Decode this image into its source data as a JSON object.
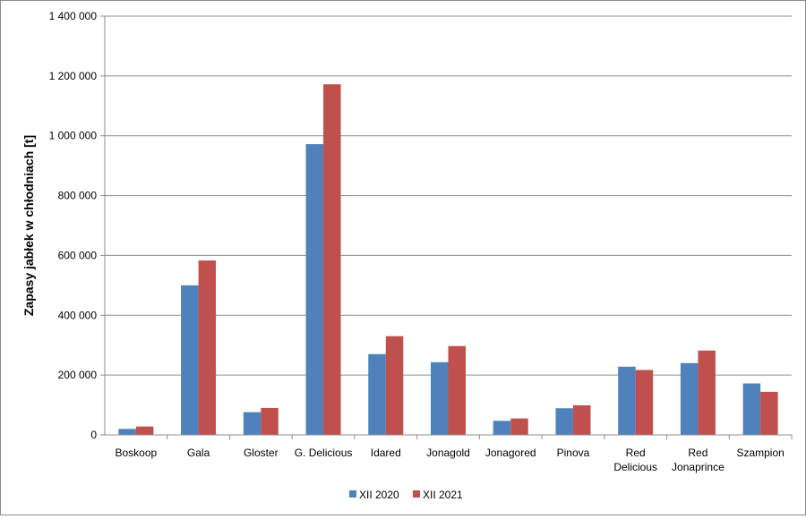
{
  "chart_data": {
    "type": "bar",
    "title": "",
    "xlabel": "",
    "ylabel": "Zapasy jabłek w chłodniach [t]",
    "ylim": [
      0,
      1400000
    ],
    "yticks": [
      0,
      200000,
      400000,
      600000,
      800000,
      1000000,
      1200000,
      1400000
    ],
    "ytick_labels": [
      "0",
      "200 000",
      "400 000",
      "600 000",
      "800 000",
      "1 000 000",
      "1 200 000",
      "1 400 000"
    ],
    "categories": [
      [
        "Boskoop"
      ],
      [
        "Gala"
      ],
      [
        "Gloster"
      ],
      [
        "G. Delicious"
      ],
      [
        "Idared"
      ],
      [
        "Jonagold"
      ],
      [
        "Jonagored"
      ],
      [
        "Pinova"
      ],
      [
        "Red",
        "Delicious"
      ],
      [
        "Red",
        "Jonaprince"
      ],
      [
        "Szampion"
      ]
    ],
    "series": [
      {
        "name": "XII 2020",
        "color": "#4f81bd",
        "values": [
          20000,
          500000,
          76000,
          972000,
          270000,
          243000,
          47000,
          89000,
          228000,
          240000,
          172000
        ]
      },
      {
        "name": "XII 2021",
        "color": "#c0504d",
        "values": [
          28000,
          583000,
          90000,
          1172000,
          330000,
          297000,
          55000,
          99000,
          217000,
          282000,
          144000
        ]
      }
    ],
    "grid": true,
    "legend_position": "bottom"
  }
}
